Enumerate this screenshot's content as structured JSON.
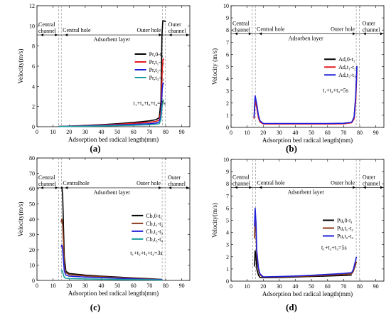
{
  "chart_data": [
    {
      "panel": "(a)",
      "type": "line",
      "xlabel": "Adsorption bed radical length(mm)",
      "ylabel": "Velocity(m/s)",
      "xlim": [
        0,
        95
      ],
      "ylim": [
        0,
        12
      ],
      "xticks": [
        0,
        10,
        20,
        30,
        40,
        50,
        60,
        70,
        80,
        90
      ],
      "yticks": [
        0,
        2,
        4,
        6,
        8,
        10,
        12
      ],
      "regions": {
        "central_channel": "Central channel",
        "central_hole": "Central hole",
        "adsorbent": "Adsorbent layer",
        "outer_hole": "Outer hole",
        "outer_channel": "Outer channel"
      },
      "boundaries_x": [
        13.4,
        15.1,
        78,
        79.8
      ],
      "region_line_y": 9.1,
      "legend_placement": "right",
      "note": "t₁+t₂+t₃+t₄=7s",
      "series": [
        {
          "name": "Pr,0-t₁",
          "color": "#000000",
          "x": [
            13.4,
            15,
            20,
            30,
            40,
            50,
            60,
            70,
            74,
            76,
            77,
            77.7,
            78.2,
            79,
            80
          ],
          "y": [
            0.02,
            0.03,
            0.06,
            0.12,
            0.2,
            0.3,
            0.42,
            0.58,
            0.7,
            0.9,
            2.5,
            9,
            10.5,
            10.5,
            10.4
          ]
        },
        {
          "name": "Pr,t₁-t₂",
          "color": "#e41a1c",
          "x": [
            13.4,
            15,
            20,
            30,
            40,
            50,
            60,
            70,
            74,
            76,
            77,
            77.8,
            78.3,
            79
          ],
          "y": [
            0.02,
            0.03,
            0.05,
            0.1,
            0.16,
            0.24,
            0.33,
            0.44,
            0.52,
            0.66,
            1.6,
            5.5,
            6.7,
            6.7
          ]
        },
        {
          "name": "Pr,t₂-t₃",
          "color": "#2020d8",
          "x": [
            13.4,
            15,
            20,
            30,
            40,
            50,
            60,
            70,
            74,
            76,
            77,
            77.8,
            78.3,
            79
          ],
          "y": [
            0.02,
            0.02,
            0.04,
            0.08,
            0.12,
            0.17,
            0.23,
            0.3,
            0.36,
            0.45,
            1.1,
            3.6,
            4.3,
            4.3
          ]
        },
        {
          "name": "Pr,t₃-t₄",
          "color": "#1a9e9e",
          "x": [
            13.4,
            15,
            20,
            30,
            40,
            50,
            60,
            70,
            74,
            76,
            77,
            77.8,
            78.3,
            79
          ],
          "y": [
            0.01,
            0.02,
            0.03,
            0.05,
            0.08,
            0.11,
            0.15,
            0.2,
            0.24,
            0.3,
            0.7,
            2.1,
            2.6,
            2.6
          ]
        }
      ]
    },
    {
      "panel": "(b)",
      "type": "line",
      "xlabel": "Adsorption bed radical length(mm)",
      "ylabel": "Velocity (m/s)",
      "xlim": [
        0,
        95
      ],
      "ylim": [
        0,
        10
      ],
      "xticks": [
        0,
        10,
        20,
        30,
        40,
        50,
        60,
        70,
        80,
        90
      ],
      "yticks": [
        0,
        1,
        2,
        3,
        4,
        5,
        6,
        7,
        8,
        9,
        10
      ],
      "regions": {
        "central_channel": "Central channel",
        "central_hole": "Central hole",
        "adsorbent": "Adsorben layer",
        "outer_hole": "Outer hole",
        "outer_channel": "Outer channel"
      },
      "boundaries_x": [
        13.2,
        15.1,
        77.8,
        79.8
      ],
      "region_line_y": 7.7,
      "legend_placement": "right",
      "note": "t₁+t₂+t₃=5s",
      "series": [
        {
          "name": "Ad,0-t₁",
          "color": "#000000",
          "x": [
            14.3,
            15,
            16,
            17,
            18,
            20,
            30,
            40,
            50,
            60,
            70,
            75,
            76.5,
            77.5,
            78.2
          ],
          "y": [
            0.8,
            2.5,
            1.8,
            0.9,
            0.5,
            0.3,
            0.3,
            0.3,
            0.3,
            0.3,
            0.32,
            0.4,
            0.8,
            2.5,
            5.0
          ]
        },
        {
          "name": "Ad,t₁-t₂",
          "color": "#e41a1c",
          "x": [
            14.3,
            15,
            16,
            17,
            18,
            20,
            30,
            40,
            50,
            60,
            70,
            75,
            76.5,
            77.5,
            78.2
          ],
          "y": [
            0.7,
            2.2,
            1.6,
            0.8,
            0.45,
            0.28,
            0.28,
            0.28,
            0.28,
            0.28,
            0.3,
            0.38,
            0.7,
            2.2,
            4.6
          ]
        },
        {
          "name": "Ad,t₂-t₃",
          "color": "#2020d8",
          "x": [
            14.3,
            15,
            16,
            17,
            18,
            20,
            30,
            40,
            50,
            60,
            70,
            75,
            76.5,
            77.5,
            78.2
          ],
          "y": [
            0.8,
            2.6,
            1.9,
            1.0,
            0.55,
            0.32,
            0.32,
            0.32,
            0.32,
            0.32,
            0.34,
            0.42,
            0.85,
            2.6,
            5.05
          ]
        }
      ]
    },
    {
      "panel": "(c)",
      "type": "line",
      "xlabel": "Adsorption bed radical length(mm)",
      "ylabel": "Velocity(m/s)",
      "xlim": [
        0,
        95
      ],
      "ylim": [
        0,
        80
      ],
      "xticks": [
        0,
        10,
        20,
        30,
        40,
        50,
        60,
        70,
        80,
        90
      ],
      "yticks": [
        0,
        10,
        20,
        30,
        40,
        50,
        60,
        70,
        80
      ],
      "regions": {
        "central_channel": "Central channel",
        "central_hole": "Centralhole",
        "adsorbent": "Adsorbent layer",
        "outer_hole": "Outer hole",
        "outer_channel": "Outer channel"
      },
      "boundaries_x": [
        13.5,
        15.2,
        77.8,
        79.6
      ],
      "region_line_y": 60.5,
      "legend_placement": "right",
      "note": "t₁+t₂+t₃+t₄=3s",
      "series": [
        {
          "name": "Cb,0-t₁",
          "color": "#000000",
          "x": [
            15,
            15.5,
            16,
            16.5,
            17,
            18,
            20,
            30,
            40,
            50,
            60,
            70,
            78
          ],
          "y": [
            60,
            61,
            55,
            35,
            15,
            6,
            4.5,
            3.5,
            2.8,
            2.2,
            1.6,
            1.1,
            0.6
          ]
        },
        {
          "name": "Cb,t₁-t₂",
          "color": "#8b3a1a",
          "x": [
            15,
            15.5,
            16,
            16.5,
            17,
            18,
            20,
            30,
            40,
            50,
            60,
            70,
            78
          ],
          "y": [
            38,
            40,
            36,
            24,
            10,
            5,
            3.8,
            3,
            2.4,
            1.9,
            1.4,
            1,
            0.5
          ]
        },
        {
          "name": "Cb,t₂-t₃",
          "color": "#2020d8",
          "x": [
            15,
            15.5,
            16,
            16.5,
            17,
            18,
            20,
            30,
            40,
            50,
            60,
            70,
            78
          ],
          "y": [
            22,
            23,
            20,
            13,
            6,
            3.5,
            2.8,
            2.2,
            1.8,
            1.4,
            1,
            0.7,
            0.4
          ]
        },
        {
          "name": "Cb,t₃-t₄",
          "color": "#1a9e9e",
          "x": [
            15,
            15.5,
            16,
            16.5,
            17,
            18,
            20,
            30,
            40,
            50,
            60,
            70,
            78
          ],
          "y": [
            6,
            6.5,
            5.5,
            3.5,
            2,
            1.4,
            1.2,
            1,
            0.8,
            0.6,
            0.5,
            0.4,
            0.2
          ]
        }
      ]
    },
    {
      "panel": "(d)",
      "type": "line",
      "xlabel": "Adsorption bed radical length(mm)",
      "ylabel": "Velocity(m/s)",
      "xlim": [
        0,
        95
      ],
      "ylim": [
        0,
        10
      ],
      "xticks": [
        0,
        10,
        20,
        30,
        40,
        50,
        60,
        70,
        80,
        90
      ],
      "yticks": [
        0,
        1,
        2,
        3,
        4,
        5,
        6,
        7,
        8,
        9,
        10
      ],
      "regions": {
        "central_channel": "Central channel",
        "central_hole": "Central hole",
        "adsorbent": "Adsorbent layer",
        "outer_hole": "Outer hole",
        "outer_channel": "Outer channel"
      },
      "boundaries_x": [
        13.4,
        15.2,
        77.8,
        79.9
      ],
      "region_line_y": 7.7,
      "legend_placement": "right",
      "note": "t₁+t₂+t₃=5s",
      "series": [
        {
          "name": "Pu,0-t₁",
          "color": "#000000",
          "x": [
            14.6,
            15,
            15.5,
            16,
            17,
            18,
            20,
            30,
            40,
            50,
            60,
            70,
            75
          ],
          "y": [
            1.2,
            2.5,
            2.0,
            1.0,
            0.5,
            0.3,
            0.28,
            0.3,
            0.34,
            0.38,
            0.42,
            0.46,
            0.5
          ]
        },
        {
          "name": "Pu,t₁-t₂",
          "color": "#8b3a1a",
          "x": [
            14.6,
            15,
            15.5,
            16,
            17,
            18,
            20,
            30,
            40,
            50,
            60,
            70,
            75,
            76,
            77,
            78
          ],
          "y": [
            3.5,
            5.2,
            4.0,
            2.0,
            0.9,
            0.5,
            0.32,
            0.34,
            0.38,
            0.42,
            0.48,
            0.55,
            0.6,
            0.8,
            1.2,
            1.6
          ]
        },
        {
          "name": "Pu,t₂-t₃",
          "color": "#2020d8",
          "x": [
            14.6,
            15,
            15.5,
            16,
            17,
            18,
            20,
            30,
            40,
            50,
            60,
            70,
            75,
            76,
            77,
            78
          ],
          "y": [
            4.5,
            6.0,
            4.8,
            2.5,
            1.1,
            0.6,
            0.35,
            0.38,
            0.42,
            0.48,
            0.55,
            0.63,
            0.7,
            0.95,
            1.5,
            2.0
          ]
        }
      ]
    }
  ]
}
